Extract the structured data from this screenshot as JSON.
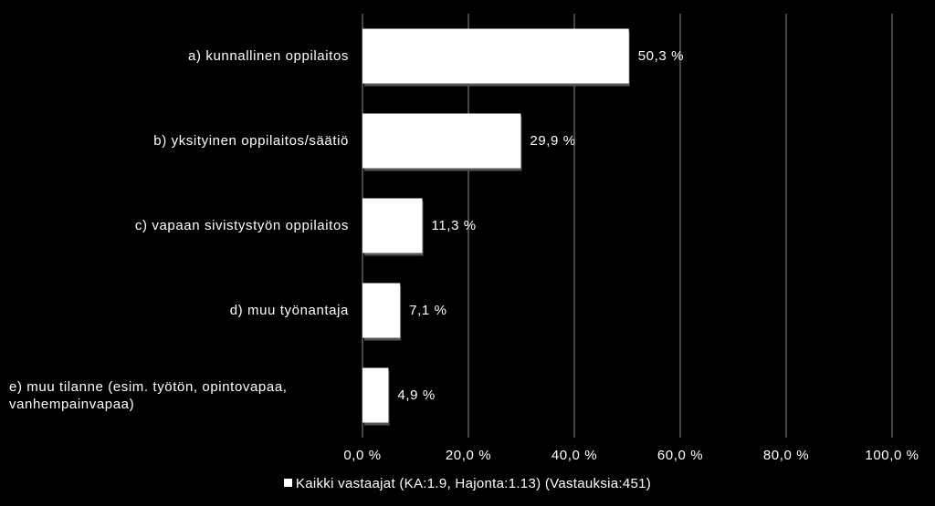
{
  "chart_data": {
    "type": "bar",
    "orientation": "horizontal",
    "categories": [
      "a) kunnallinen  oppilaitos",
      "b) yksityinen oppilaitos/säätiö",
      "c) vapaan sivistystyön oppilaitos",
      "d) muu työnantaja",
      "e)   muu tilanne (esim. työtön, opintovapaa, vanhempainvapaa)"
    ],
    "values": [
      50.3,
      29.9,
      11.3,
      7.1,
      4.9
    ],
    "value_labels": [
      "50,3 %",
      "29,9 %",
      "11,3 %",
      "7,1 %",
      "4,9 %"
    ],
    "series": [
      {
        "name": "Kaikki vastaajat (KA:1.9, Hajonta:1.13) (Vastauksia:451)",
        "values": [
          50.3,
          29.9,
          11.3,
          7.1,
          4.9
        ]
      }
    ],
    "xlim": [
      0,
      100
    ],
    "x_ticks": [
      0,
      20,
      40,
      60,
      80,
      100
    ],
    "x_tick_labels": [
      "0,0 %",
      "20,0 %",
      "40,0 %",
      "60,0 %",
      "80,0 %",
      "100,0 %"
    ],
    "grid": true,
    "legend_position": "bottom",
    "colors": {
      "background": "#000000",
      "bar": "#ffffff",
      "grid": "#8c8c8c",
      "text": "#ffffff"
    }
  }
}
